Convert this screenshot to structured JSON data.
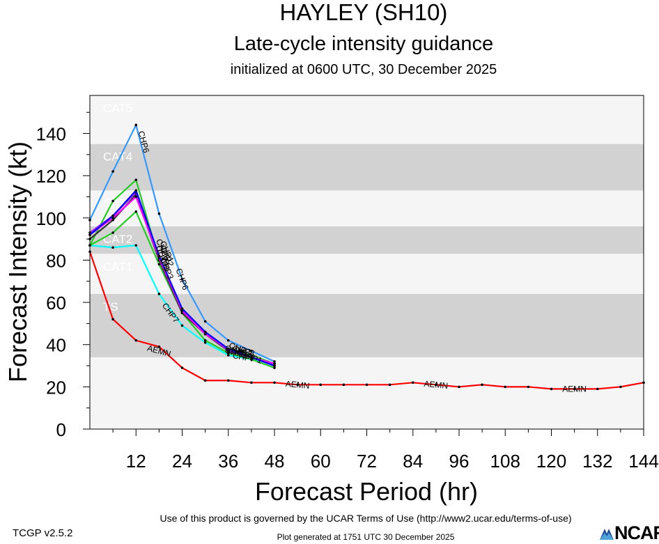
{
  "chart_data": {
    "type": "line",
    "title": "HAYLEY (SH10)",
    "subtitle": "Late-cycle intensity guidance",
    "subtitle2": "initialized at 0600 UTC, 30 December 2025",
    "xlabel": "Forecast Period (hr)",
    "ylabel": "Forecast Intensity (kt)",
    "xlim": [
      0,
      144
    ],
    "ylim": [
      0,
      158
    ],
    "xticks": [
      12,
      24,
      36,
      48,
      60,
      72,
      84,
      96,
      108,
      120,
      132,
      144
    ],
    "yticks": [
      0,
      20,
      40,
      60,
      80,
      100,
      120,
      140
    ],
    "bands": [
      {
        "label": "TS",
        "from": 34,
        "to": 64,
        "color": "#d2d2d2"
      },
      {
        "label": "CAT1",
        "from": 64,
        "to": 83,
        "color": "#f5f5f5"
      },
      {
        "label": "CAT2",
        "from": 83,
        "to": 96,
        "color": "#d2d2d2"
      },
      {
        "label": "CAT3",
        "from": 96,
        "to": 113,
        "color": "#f5f5f5"
      },
      {
        "label": "CAT4",
        "from": 113,
        "to": 135,
        "color": "#d2d2d2"
      },
      {
        "label": "CAT5",
        "from": 135,
        "to": 158,
        "color": "#f5f5f5"
      }
    ],
    "series": [
      {
        "name": "AEMN",
        "color": "#ff0000",
        "x": [
          0,
          6,
          12,
          18,
          24,
          30,
          36,
          42,
          48,
          54,
          60,
          66,
          72,
          78,
          84,
          90,
          96,
          102,
          108,
          114,
          120,
          126,
          132,
          138,
          144
        ],
        "values": [
          84,
          52,
          42,
          39,
          29,
          23,
          23,
          22,
          22,
          21,
          21,
          21,
          21,
          21,
          22,
          21,
          20,
          21,
          20,
          20,
          19,
          19,
          19,
          20,
          22
        ],
        "labels": [
          {
            "x": 18,
            "y": 37
          },
          {
            "x": 54,
            "y": 21
          },
          {
            "x": 90,
            "y": 21
          },
          {
            "x": 126,
            "y": 19
          }
        ]
      },
      {
        "name": "CHP6",
        "color": "#3399ff",
        "x": [
          0,
          6,
          12,
          18,
          24,
          30,
          36,
          42,
          48
        ],
        "values": [
          99,
          122,
          144,
          102,
          71,
          51,
          42,
          37,
          32
        ],
        "labels": [
          {
            "x": 14,
            "y": 136
          },
          {
            "x": 24,
            "y": 71
          }
        ]
      },
      {
        "name": "CHP7",
        "color": "#00ffff",
        "x": [
          0,
          6,
          12,
          18,
          24,
          30,
          36,
          42,
          48
        ],
        "values": [
          87,
          86,
          87,
          64,
          49,
          41,
          35,
          33,
          31
        ],
        "labels": [
          {
            "x": 21,
            "y": 55
          },
          {
            "x": 40,
            "y": 34
          }
        ]
      },
      {
        "name": "CHP5",
        "color": "#22cc22",
        "x": [
          0,
          6,
          12,
          18,
          24,
          30,
          36,
          42,
          48
        ],
        "values": [
          87,
          108,
          118,
          80,
          56,
          45,
          38,
          35,
          31
        ],
        "labels": [
          {
            "x": 19,
            "y": 85
          },
          {
            "x": 38,
            "y": 37
          }
        ]
      },
      {
        "name": "CHP4",
        "color": "#22cc22",
        "x": [
          0,
          6,
          12,
          18,
          24,
          30,
          36,
          42,
          48
        ],
        "values": [
          87,
          93,
          103,
          78,
          55,
          42,
          36,
          33,
          29
        ],
        "labels": [
          {
            "x": 19,
            "y": 82
          },
          {
            "x": 39,
            "y": 36
          }
        ]
      },
      {
        "name": "CHP3",
        "color": "#a020f0",
        "x": [
          0,
          6,
          12,
          18,
          24,
          30,
          36,
          42,
          48
        ],
        "values": [
          93,
          101,
          112,
          82,
          56,
          46,
          37,
          34,
          30
        ],
        "labels": [
          {
            "x": 20,
            "y": 76
          },
          {
            "x": 38,
            "y": 36
          }
        ]
      },
      {
        "name": "CHP2",
        "color": "#ff00ff",
        "x": [
          0,
          6,
          12,
          18,
          24,
          30,
          36,
          42,
          48
        ],
        "values": [
          92,
          100,
          110,
          81,
          56,
          45,
          38,
          34,
          31
        ],
        "labels": [
          {
            "x": 20,
            "y": 82
          },
          {
            "x": 39,
            "y": 38
          }
        ]
      },
      {
        "name": "CHP1",
        "color": "#0000ff",
        "x": [
          0,
          6,
          12,
          18,
          24,
          30,
          36,
          42,
          48
        ],
        "values": [
          92,
          101,
          113,
          82,
          57,
          46,
          38,
          34,
          30
        ],
        "labels": [
          {
            "x": 20,
            "y": 84
          },
          {
            "x": 42,
            "y": 34
          }
        ]
      },
      {
        "name": "CHP8",
        "color": "#333333",
        "x": [
          0,
          6,
          12,
          18,
          24,
          30,
          36,
          42,
          48
        ],
        "values": [
          90,
          99,
          111,
          80,
          55,
          45,
          37,
          34,
          30
        ],
        "labels": [
          {
            "x": 19,
            "y": 80
          },
          {
            "x": 40,
            "y": 37
          }
        ]
      }
    ]
  },
  "footer": {
    "version": "TCGP v2.5.2",
    "terms": "Use of this product is governed by the UCAR Terms of Use (http://www2.ucar.edu/terms-of-use)",
    "generated": "Plot generated at 1751 UTC   30 December 2025",
    "logo": "NCAR"
  }
}
